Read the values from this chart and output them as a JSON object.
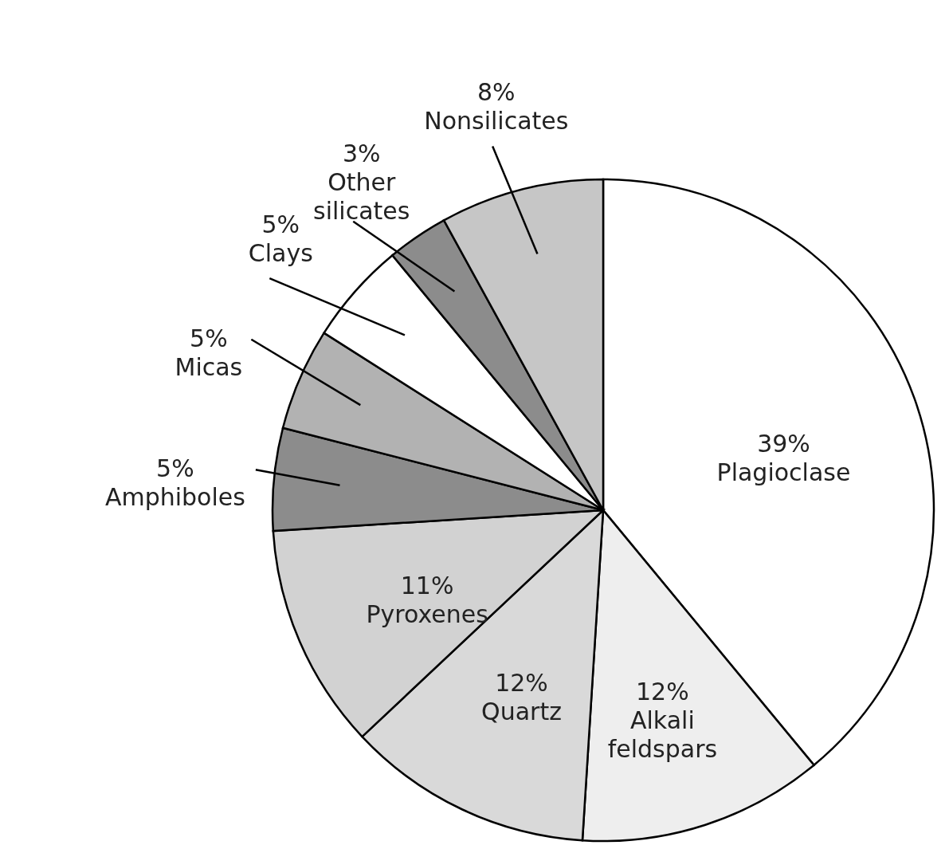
{
  "chart_data": {
    "type": "pie",
    "categories": [
      "Plagioclase",
      "Alkali feldspars",
      "Quartz",
      "Pyroxenes",
      "Amphiboles",
      "Micas",
      "Clays",
      "Other silicates",
      "Nonsilicates"
    ],
    "values": [
      39,
      12,
      12,
      11,
      5,
      5,
      5,
      3,
      8
    ],
    "colors": [
      "#ffffff",
      "#eeeeee",
      "#d9d9d9",
      "#d2d2d2",
      "#8c8c8c",
      "#b2b2b2",
      "#ffffff",
      "#8c8c8c",
      "#c6c6c6"
    ],
    "value_labels": [
      "39%",
      "12%",
      "12%",
      "11%",
      "5%",
      "5%",
      "5%",
      "3%",
      "8%"
    ],
    "legend": false
  }
}
